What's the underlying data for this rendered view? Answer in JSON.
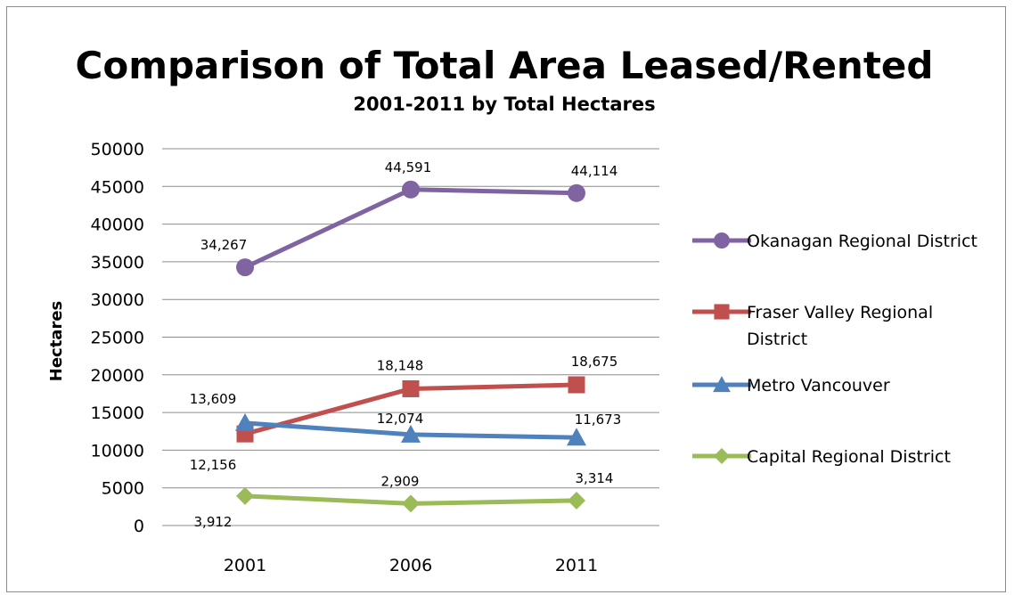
{
  "chart_data": {
    "type": "line",
    "title": "Comparison of Total Area Leased/Rented",
    "subtitle": "2001-2011 by Total Hectares",
    "xlabel": "",
    "ylabel": "Hectares",
    "categories": [
      "2001",
      "2006",
      "2011"
    ],
    "ylim": [
      0,
      50000
    ],
    "yticks": [
      "0",
      "5000",
      "10000",
      "15000",
      "20000",
      "25000",
      "30000",
      "35000",
      "40000",
      "45000",
      "50000"
    ],
    "grid": true,
    "legend_position": "right",
    "series": [
      {
        "name": "Okanagan Regional District",
        "color": "#8064a2",
        "marker": "circle",
        "values": [
          34267,
          44591,
          44114
        ],
        "labels": [
          "34,267",
          "44,591",
          "44,114"
        ]
      },
      {
        "name": "Fraser Valley Regional District",
        "legend_lines": [
          "Fraser Valley Regional",
          "District"
        ],
        "color": "#c0504d",
        "marker": "square",
        "values": [
          12156,
          18148,
          18675
        ],
        "labels": [
          "12,156",
          "18,148",
          "18,675"
        ]
      },
      {
        "name": "Metro Vancouver",
        "color": "#4f81bd",
        "marker": "triangle",
        "values": [
          13609,
          12074,
          11673
        ],
        "labels": [
          "13,609",
          "12,074",
          "11,673"
        ]
      },
      {
        "name": "Capital Regional District",
        "color": "#9bbb59",
        "marker": "diamond",
        "values": [
          3912,
          2909,
          3314
        ],
        "labels": [
          "3,912",
          "2,909",
          "3,314"
        ]
      }
    ]
  }
}
